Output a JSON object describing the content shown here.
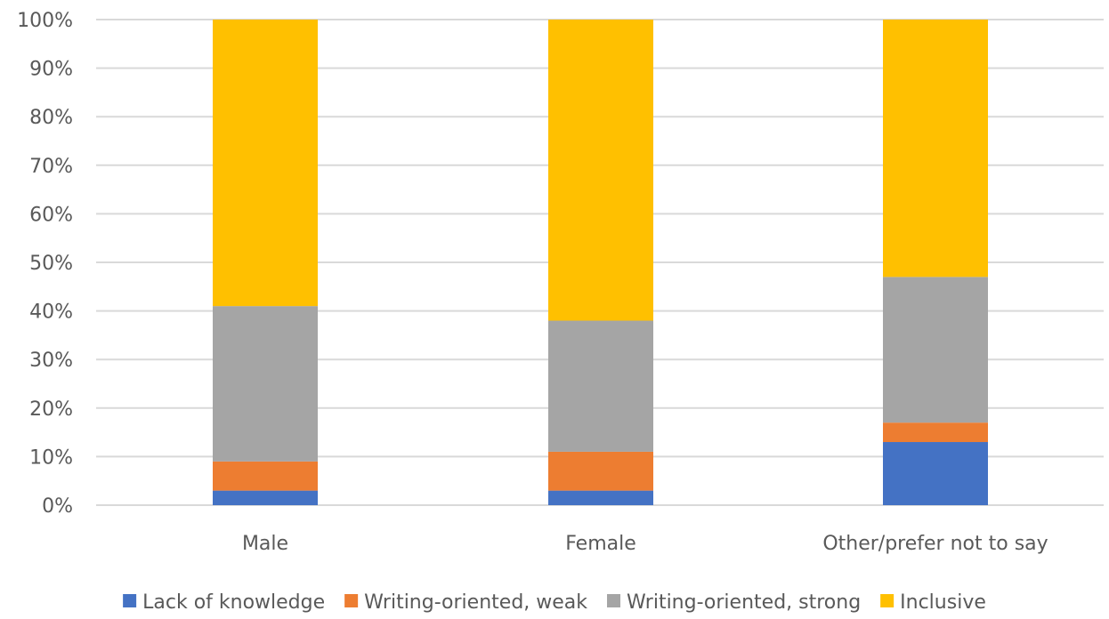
{
  "chart_data": {
    "type": "bar",
    "stacked": true,
    "percent_stacked": true,
    "categories": [
      "Male",
      "Female",
      "Other/prefer not to say"
    ],
    "series": [
      {
        "name": "Lack of knowledge",
        "color": "#4472c4",
        "values": [
          3,
          3,
          13
        ]
      },
      {
        "name": "Writing-oriented, weak",
        "color": "#ed7d31",
        "values": [
          6,
          8,
          4
        ]
      },
      {
        "name": "Writing-oriented, strong",
        "color": "#a5a5a5",
        "values": [
          32,
          27,
          30
        ]
      },
      {
        "name": "Inclusive",
        "color": "#ffc000",
        "values": [
          59,
          62,
          53
        ]
      }
    ],
    "y_ticks": [
      "0%",
      "10%",
      "20%",
      "30%",
      "40%",
      "50%",
      "60%",
      "70%",
      "80%",
      "90%",
      "100%"
    ],
    "ylim": [
      0,
      100
    ],
    "grid": true,
    "legend_position": "bottom"
  }
}
